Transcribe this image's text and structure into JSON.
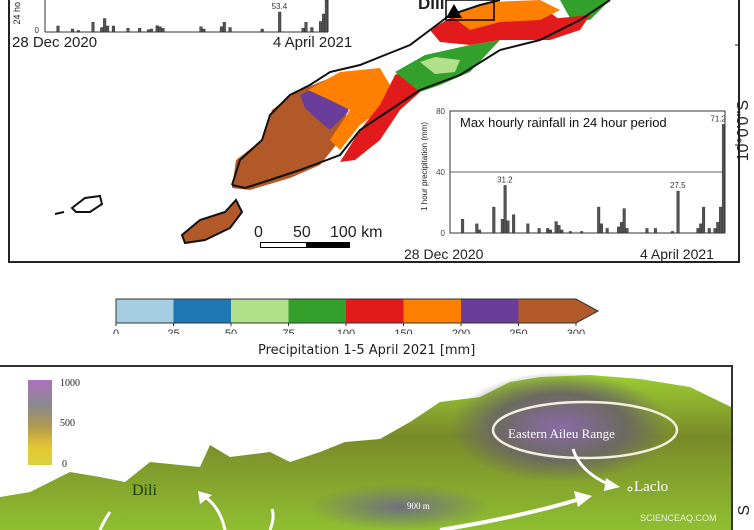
{
  "top_panel": {
    "latitude_label": "10°0'0\"S",
    "city_label": "Dili",
    "scale_bar": {
      "ticks": [
        "0",
        "50",
        "100 km"
      ]
    },
    "colors": {
      "lightblue": "#a6cee3",
      "blue": "#1f78b4",
      "lightgreen": "#b2df8a",
      "green": "#33a02c",
      "red": "#e31a1c",
      "orange": "#ff7f00",
      "purple": "#6a3d9a",
      "brown": "#b15928"
    }
  },
  "chart_data": [
    {
      "type": "bar",
      "title": "",
      "ylabel": "24 ho",
      "y_tick_labels": [
        "0"
      ],
      "x_tick_labels": [
        "28 Dec 2020",
        "4 April 2021"
      ],
      "annotations": [
        "53.4"
      ],
      "values": [
        0,
        0,
        0,
        0,
        16,
        0,
        0,
        0,
        0,
        8,
        0,
        4,
        0,
        0,
        0,
        0,
        26,
        0,
        0,
        12,
        36,
        16,
        0,
        16,
        0,
        0,
        0,
        0,
        10,
        0,
        0,
        0,
        10,
        0,
        0,
        6,
        8,
        0,
        17,
        14,
        10,
        0,
        0,
        0,
        0,
        0,
        0,
        0,
        0,
        0,
        0,
        0,
        0,
        14,
        8,
        0,
        0,
        0,
        0,
        0,
        14,
        26,
        0,
        12,
        0,
        0,
        0,
        0,
        0,
        0,
        0,
        0,
        0,
        0,
        8,
        0,
        0,
        0,
        0,
        0,
        53.4,
        0,
        0,
        0,
        0,
        0,
        0,
        0,
        10,
        26,
        0,
        12,
        0,
        0,
        28,
        48,
        100
      ]
    },
    {
      "type": "bar",
      "title": "Max hourly rainfall in 24 hour period",
      "ylabel": "1 hour precipitation (mm)",
      "ylim": [
        0,
        80
      ],
      "y_tick_labels": [
        "0",
        "40",
        "80"
      ],
      "x_tick_labels": [
        "28 Dec 2020",
        "4 April 2021"
      ],
      "annotations": [
        "31.2",
        "27.5",
        "71.2"
      ],
      "grid_lines": [
        40
      ],
      "values": [
        0,
        0,
        0,
        0,
        9,
        0,
        0,
        0,
        0,
        6,
        2,
        0,
        0,
        0,
        0,
        17,
        0,
        0,
        9,
        31.2,
        8,
        0,
        12,
        0,
        0,
        0,
        0,
        6,
        0,
        0,
        0,
        3,
        0,
        0,
        3,
        2,
        0,
        7.5,
        5,
        2,
        0,
        0,
        1,
        0,
        0,
        0,
        1,
        0,
        0,
        0,
        0,
        0,
        17,
        6,
        0,
        3,
        0,
        0,
        0,
        4,
        7,
        16,
        3,
        0,
        0,
        0,
        0,
        0,
        0,
        3,
        0,
        0,
        3,
        0,
        0,
        0,
        0,
        0,
        1,
        0,
        27.5,
        0,
        0,
        0,
        0,
        0,
        0,
        3,
        6,
        17,
        0,
        3,
        0,
        3,
        7,
        17,
        71.2
      ]
    }
  ],
  "colorbar": {
    "title": "Precipitation 1-5 April 2021 [mm]",
    "ticks": [
      "0",
      "25",
      "50",
      "75",
      "100",
      "150",
      "200",
      "250",
      "300"
    ],
    "colors": [
      "#a6cee3",
      "#1f78b4",
      "#b2df8a",
      "#33a02c",
      "#e31a1c",
      "#ff7f00",
      "#6a3d9a",
      "#b15928"
    ]
  },
  "bottom_panel": {
    "elevation_legend": [
      "1000",
      "500",
      "0"
    ],
    "labels": {
      "dili": "Dili",
      "range": "Eastern Aileu Range",
      "laclo": "Laclo",
      "height": "900 m"
    },
    "watermark": "SCIENCEAQ.COM",
    "edge_label": "S"
  }
}
